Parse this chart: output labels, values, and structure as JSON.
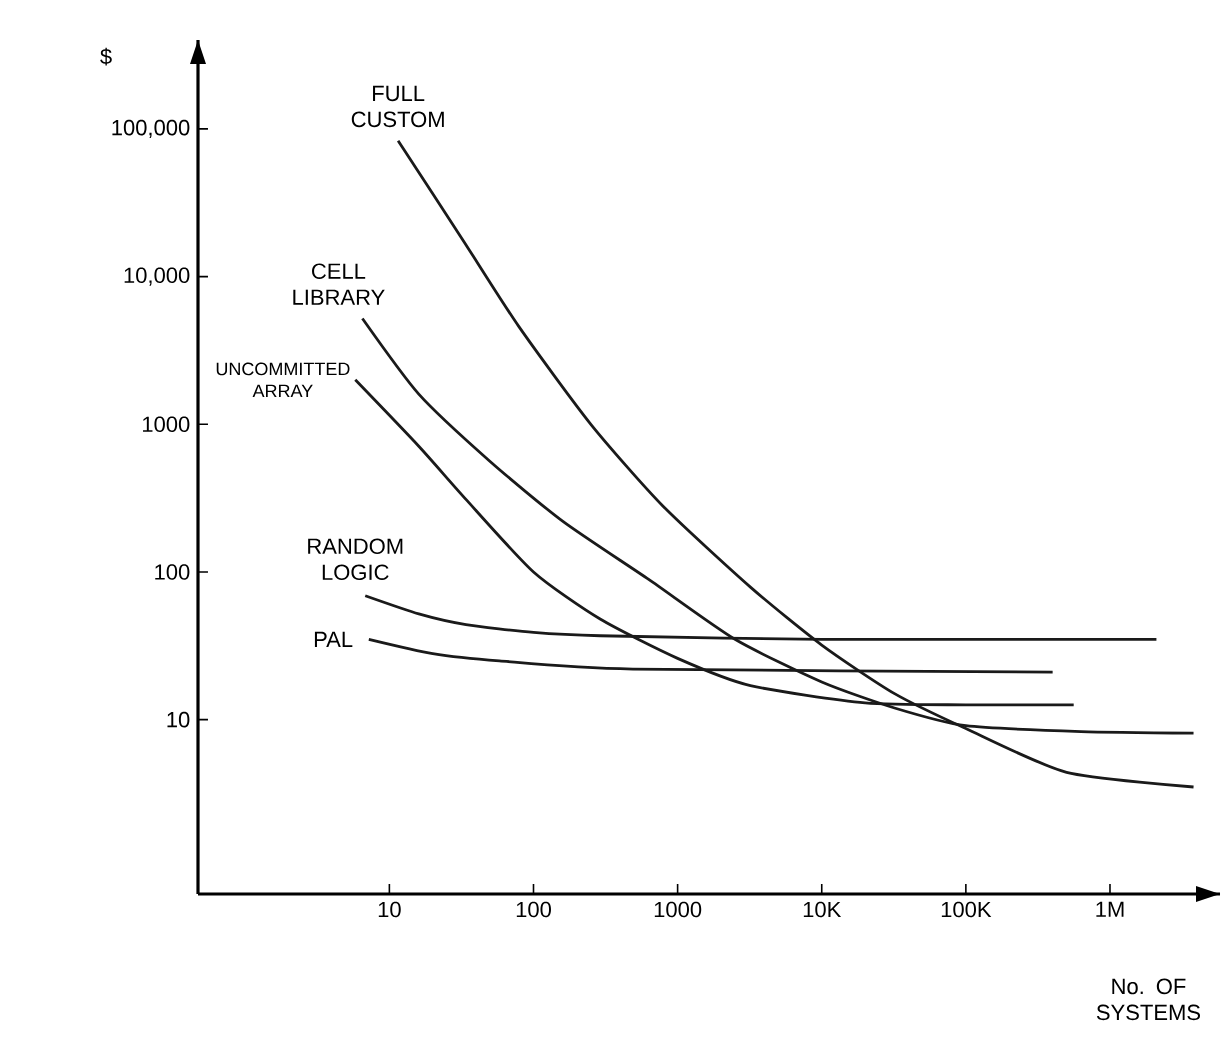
{
  "chart_data": {
    "type": "line",
    "xlabel": "No. OF SYSTEMS",
    "ylabel": "$",
    "log": "xy",
    "xlim": [
      0.47,
      5800000
    ],
    "ylim": [
      0.66,
      400000
    ],
    "xticks": [
      10,
      100,
      1000,
      {
        "value": 10000,
        "label": "10K"
      },
      {
        "value": 100000,
        "label": "100K"
      },
      {
        "value": 1000000,
        "label": "1M"
      }
    ],
    "yticks": [
      10,
      100,
      1000,
      {
        "value": 10000,
        "label": "10,000"
      },
      {
        "value": 100000,
        "label": "100,000"
      }
    ],
    "series": [
      {
        "name": "FULL CUSTOM",
        "color": "#1a1a1a",
        "x": [
          11.5,
          32,
          79,
          250,
          790,
          3200,
          10000,
          32000,
          100000,
          500000,
          3800000
        ],
        "values": [
          83000,
          18000,
          4600,
          1000,
          280,
          79,
          32,
          15,
          8.7,
          4.4,
          3.5
        ]
      },
      {
        "name": "CELL LIBRARY",
        "color": "#1a1a1a",
        "x": [
          6.5,
          16,
          50,
          160,
          630,
          2500,
          10000,
          32000,
          100000,
          630000,
          3800000
        ],
        "values": [
          5200,
          1600,
          560,
          220,
          89,
          35,
          18,
          12,
          9.1,
          8.3,
          8.1
        ]
      },
      {
        "name": "UNCOMMITTED ARRAY",
        "color": "#1a1a1a",
        "x": [
          5.8,
          16,
          34,
          100,
          290,
          1000,
          3200,
          20000,
          100000,
          560000
        ],
        "values": [
          2000,
          710,
          310,
          100,
          48,
          26,
          17,
          13,
          12.6,
          12.6
        ]
      },
      {
        "name": "RANDOM LOGIC",
        "color": "#1a1a1a",
        "x": [
          6.8,
          16,
          34,
          100,
          290,
          10000,
          2100000
        ],
        "values": [
          69,
          52,
          44,
          39,
          37,
          35,
          35
        ]
      },
      {
        "name": "PAL",
        "color": "#1a1a1a",
        "x": [
          7.2,
          20,
          58,
          490,
          400000
        ],
        "values": [
          35,
          28,
          25,
          22,
          21
        ]
      }
    ]
  }
}
